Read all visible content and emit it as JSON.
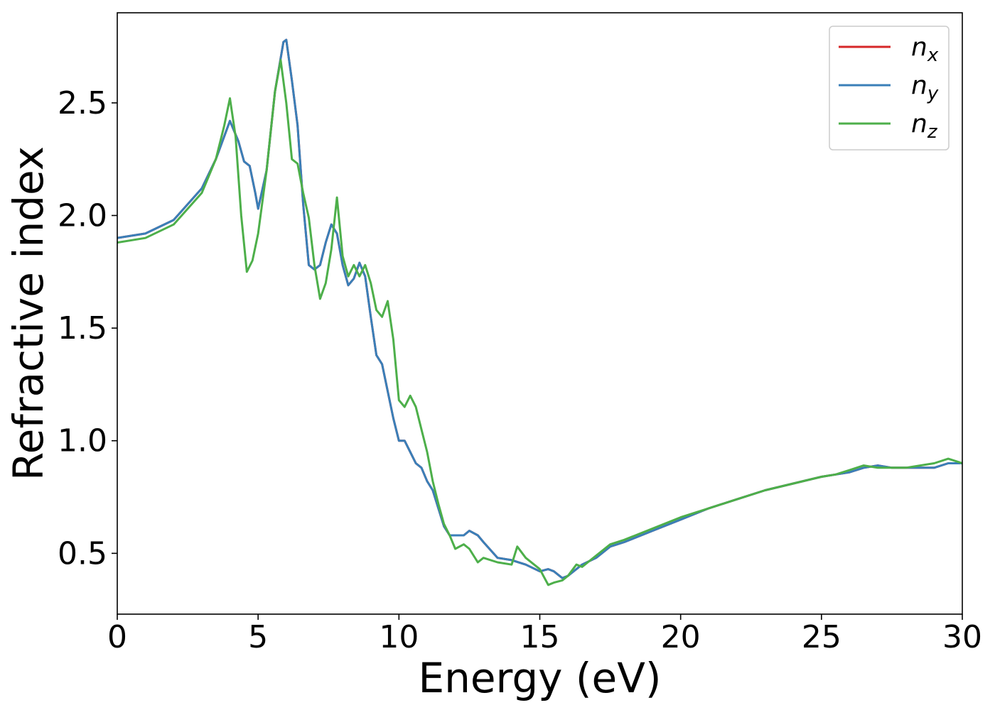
{
  "chart_data": {
    "type": "line",
    "xlabel": "Energy (eV)",
    "ylabel": "Refractive index",
    "xlim": [
      0,
      30
    ],
    "ylim": [
      0.23,
      2.9
    ],
    "xticks": [
      0,
      5,
      10,
      15,
      20,
      25,
      30
    ],
    "yticks": [
      0.5,
      1.0,
      1.5,
      2.0,
      2.5
    ],
    "xtick_labels": [
      "0",
      "5",
      "10",
      "15",
      "20",
      "25",
      "30"
    ],
    "ytick_labels": [
      "0.5",
      "1.0",
      "1.5",
      "2.0",
      "2.5"
    ],
    "grid": false,
    "legend_position": "top-right",
    "series": [
      {
        "name": "n",
        "subscript": "x",
        "color": "#d62728",
        "x": [
          0,
          1,
          2,
          3,
          3.5,
          4,
          4.3,
          4.5,
          4.7,
          4.9,
          5.0,
          5.3,
          5.6,
          5.9,
          6.0,
          6.2,
          6.4,
          6.6,
          6.8,
          7.0,
          7.2,
          7.4,
          7.6,
          7.8,
          8.0,
          8.2,
          8.4,
          8.6,
          8.8,
          9.0,
          9.2,
          9.4,
          9.6,
          9.8,
          10.0,
          10.2,
          10.4,
          10.6,
          10.8,
          11.0,
          11.2,
          11.4,
          11.6,
          11.8,
          12.0,
          12.3,
          12.5,
          12.8,
          13.0,
          13.5,
          14.0,
          14.5,
          15.0,
          15.3,
          15.5,
          15.8,
          16.0,
          16.5,
          17.0,
          17.5,
          18.0,
          19.0,
          20.0,
          21.0,
          22.0,
          23.0,
          24.0,
          25.0,
          25.5,
          26.0,
          26.5,
          27.0,
          27.5,
          28.0,
          29.0,
          29.5,
          30.0
        ],
        "values": [
          1.9,
          1.92,
          1.98,
          2.12,
          2.25,
          2.42,
          2.33,
          2.24,
          2.22,
          2.1,
          2.03,
          2.2,
          2.55,
          2.77,
          2.78,
          2.6,
          2.4,
          2.05,
          1.78,
          1.76,
          1.78,
          1.88,
          1.96,
          1.92,
          1.78,
          1.69,
          1.72,
          1.79,
          1.73,
          1.55,
          1.38,
          1.34,
          1.22,
          1.1,
          1.0,
          1.0,
          0.95,
          0.9,
          0.88,
          0.82,
          0.78,
          0.7,
          0.62,
          0.58,
          0.58,
          0.58,
          0.6,
          0.58,
          0.55,
          0.48,
          0.47,
          0.45,
          0.42,
          0.43,
          0.42,
          0.39,
          0.4,
          0.45,
          0.48,
          0.53,
          0.55,
          0.6,
          0.65,
          0.7,
          0.74,
          0.78,
          0.81,
          0.84,
          0.85,
          0.86,
          0.88,
          0.89,
          0.88,
          0.88,
          0.88,
          0.9,
          0.9
        ]
      },
      {
        "name": "n",
        "subscript": "y",
        "color": "#3a7fb8",
        "x": [
          0,
          1,
          2,
          3,
          3.5,
          4,
          4.3,
          4.5,
          4.7,
          4.9,
          5.0,
          5.3,
          5.6,
          5.9,
          6.0,
          6.2,
          6.4,
          6.6,
          6.8,
          7.0,
          7.2,
          7.4,
          7.6,
          7.8,
          8.0,
          8.2,
          8.4,
          8.6,
          8.8,
          9.0,
          9.2,
          9.4,
          9.6,
          9.8,
          10.0,
          10.2,
          10.4,
          10.6,
          10.8,
          11.0,
          11.2,
          11.4,
          11.6,
          11.8,
          12.0,
          12.3,
          12.5,
          12.8,
          13.0,
          13.5,
          14.0,
          14.5,
          15.0,
          15.3,
          15.5,
          15.8,
          16.0,
          16.5,
          17.0,
          17.5,
          18.0,
          19.0,
          20.0,
          21.0,
          22.0,
          23.0,
          24.0,
          25.0,
          25.5,
          26.0,
          26.5,
          27.0,
          27.5,
          28.0,
          29.0,
          29.5,
          30.0
        ],
        "values": [
          1.9,
          1.92,
          1.98,
          2.12,
          2.25,
          2.42,
          2.33,
          2.24,
          2.22,
          2.1,
          2.03,
          2.2,
          2.55,
          2.77,
          2.78,
          2.6,
          2.4,
          2.05,
          1.78,
          1.76,
          1.78,
          1.88,
          1.96,
          1.92,
          1.78,
          1.69,
          1.72,
          1.79,
          1.73,
          1.55,
          1.38,
          1.34,
          1.22,
          1.1,
          1.0,
          1.0,
          0.95,
          0.9,
          0.88,
          0.82,
          0.78,
          0.7,
          0.62,
          0.58,
          0.58,
          0.58,
          0.6,
          0.58,
          0.55,
          0.48,
          0.47,
          0.45,
          0.42,
          0.43,
          0.42,
          0.39,
          0.4,
          0.45,
          0.48,
          0.53,
          0.55,
          0.6,
          0.65,
          0.7,
          0.74,
          0.78,
          0.81,
          0.84,
          0.85,
          0.86,
          0.88,
          0.89,
          0.88,
          0.88,
          0.88,
          0.9,
          0.9
        ]
      },
      {
        "name": "n",
        "subscript": "z",
        "color": "#4daf4a",
        "x": [
          0,
          1,
          2,
          3,
          3.5,
          3.8,
          4.0,
          4.2,
          4.4,
          4.6,
          4.8,
          5.0,
          5.3,
          5.6,
          5.8,
          6.0,
          6.2,
          6.4,
          6.6,
          6.8,
          7.0,
          7.2,
          7.4,
          7.6,
          7.8,
          8.0,
          8.2,
          8.4,
          8.6,
          8.8,
          9.0,
          9.2,
          9.4,
          9.6,
          9.8,
          10.0,
          10.2,
          10.4,
          10.6,
          10.8,
          11.0,
          11.2,
          11.4,
          11.6,
          11.8,
          12.0,
          12.3,
          12.5,
          12.8,
          13.0,
          13.5,
          14.0,
          14.2,
          14.5,
          15.0,
          15.3,
          15.5,
          15.8,
          16.0,
          16.3,
          16.5,
          17.0,
          17.5,
          18.0,
          19.0,
          20.0,
          21.0,
          22.0,
          23.0,
          24.0,
          25.0,
          25.5,
          26.0,
          26.5,
          27.0,
          27.5,
          28.0,
          29.0,
          29.5,
          30.0
        ],
        "values": [
          1.88,
          1.9,
          1.96,
          2.1,
          2.25,
          2.4,
          2.52,
          2.35,
          2.0,
          1.75,
          1.8,
          1.92,
          2.2,
          2.55,
          2.69,
          2.5,
          2.25,
          2.23,
          2.1,
          1.99,
          1.78,
          1.63,
          1.7,
          1.85,
          2.08,
          1.82,
          1.73,
          1.78,
          1.73,
          1.78,
          1.7,
          1.58,
          1.55,
          1.62,
          1.45,
          1.18,
          1.15,
          1.2,
          1.15,
          1.05,
          0.95,
          0.82,
          0.72,
          0.63,
          0.58,
          0.52,
          0.54,
          0.52,
          0.46,
          0.48,
          0.46,
          0.45,
          0.53,
          0.48,
          0.43,
          0.36,
          0.37,
          0.38,
          0.4,
          0.45,
          0.44,
          0.49,
          0.54,
          0.56,
          0.61,
          0.66,
          0.7,
          0.74,
          0.78,
          0.81,
          0.84,
          0.85,
          0.87,
          0.89,
          0.88,
          0.88,
          0.88,
          0.9,
          0.92,
          0.9
        ]
      }
    ]
  }
}
